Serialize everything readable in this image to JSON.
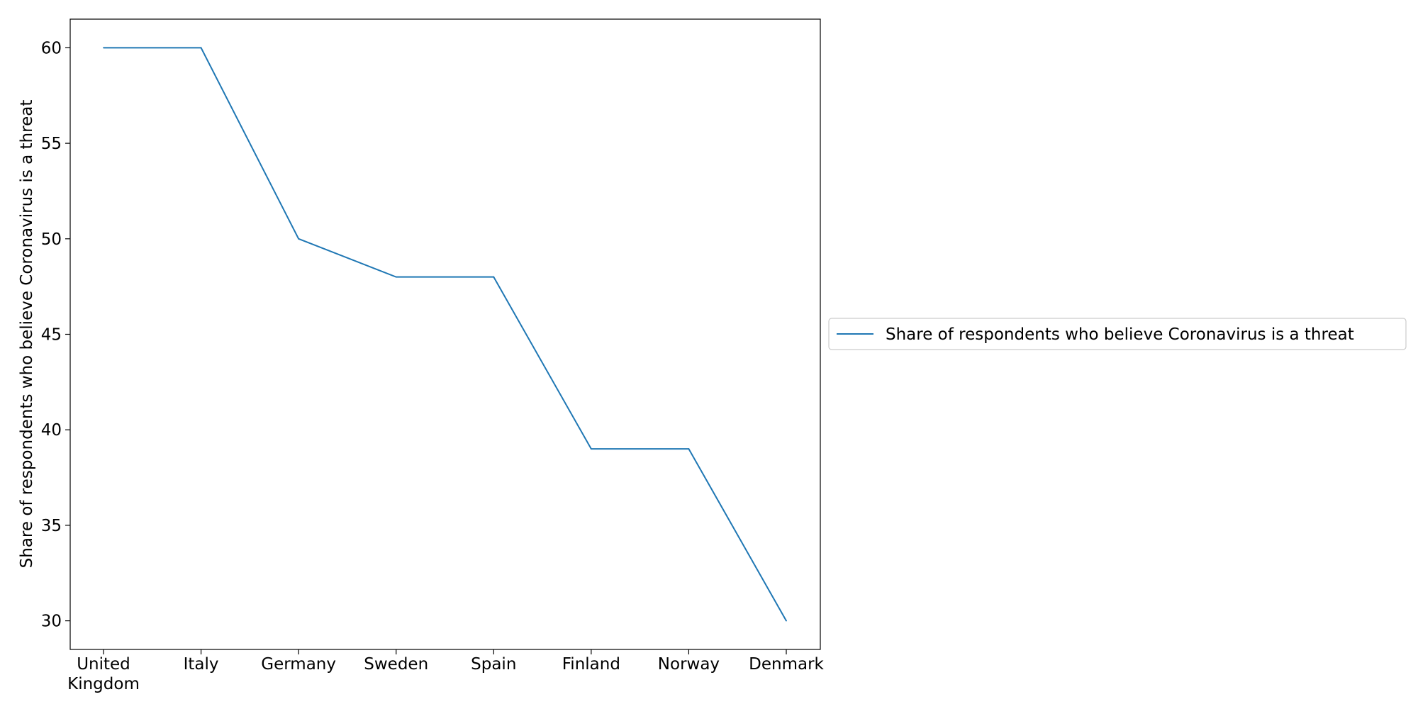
{
  "chart_data": {
    "type": "line",
    "categories": [
      [
        "United",
        "Kingdom"
      ],
      [
        "Italy"
      ],
      [
        "Germany"
      ],
      [
        "Sweden"
      ],
      [
        "Spain"
      ],
      [
        "Finland"
      ],
      [
        "Norway"
      ],
      [
        "Denmark"
      ]
    ],
    "series": [
      {
        "name": "Share of respondents who believe Coronavirus is a threat",
        "values": [
          60,
          60,
          50,
          48,
          48,
          39,
          39,
          30
        ],
        "color": "#1f77b4"
      }
    ],
    "title": "",
    "xlabel": "",
    "ylabel": "Share of respondents who believe Coronavirus is a threat",
    "ylim": [
      28.5,
      61.5
    ],
    "yticks": [
      30,
      35,
      40,
      45,
      50,
      55,
      60
    ],
    "grid": false,
    "legend_position": "center-right outside plot"
  }
}
